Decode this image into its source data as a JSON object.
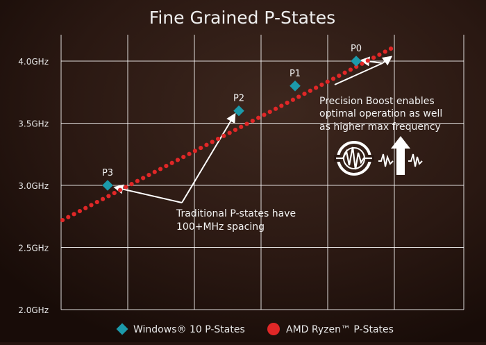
{
  "chart_data": {
    "type": "scatter",
    "title": "Fine Grained P-States",
    "xlabel": "",
    "ylabel": "",
    "ylim": [
      2.0,
      4.0
    ],
    "y_ticks": [
      {
        "value": 4.0,
        "label": "4.0GHz"
      },
      {
        "value": 3.5,
        "label": "3.5GHz"
      },
      {
        "value": 3.0,
        "label": "3.0GHz"
      },
      {
        "value": 2.5,
        "label": "2.5GHz"
      },
      {
        "value": 2.0,
        "label": "2.0GHz"
      }
    ],
    "grid": true,
    "series": [
      {
        "name": "Windows® 10 P-States",
        "marker": "diamond",
        "color": "#1c9aaa",
        "points": [
          {
            "label": "P3",
            "y": 3.0
          },
          {
            "label": "P2",
            "y": 3.6
          },
          {
            "label": "P1",
            "y": 3.8
          },
          {
            "label": "P0",
            "y": 4.0
          }
        ]
      },
      {
        "name": "AMD Ryzen™ P-States",
        "marker": "dot",
        "color": "#e02727",
        "y_start": 2.72,
        "y_end": 4.1,
        "count": 58
      }
    ],
    "annotations": [
      {
        "text_lines": [
          "Precision Boost enables",
          "optimal operation as well",
          "as higher max frequency"
        ]
      },
      {
        "text_lines": [
          "Traditional P-states have",
          "100+MHz spacing"
        ]
      }
    ],
    "legend": "bottom",
    "icons": [
      "precision-boost-icon",
      "frequency-boost-icon"
    ]
  }
}
